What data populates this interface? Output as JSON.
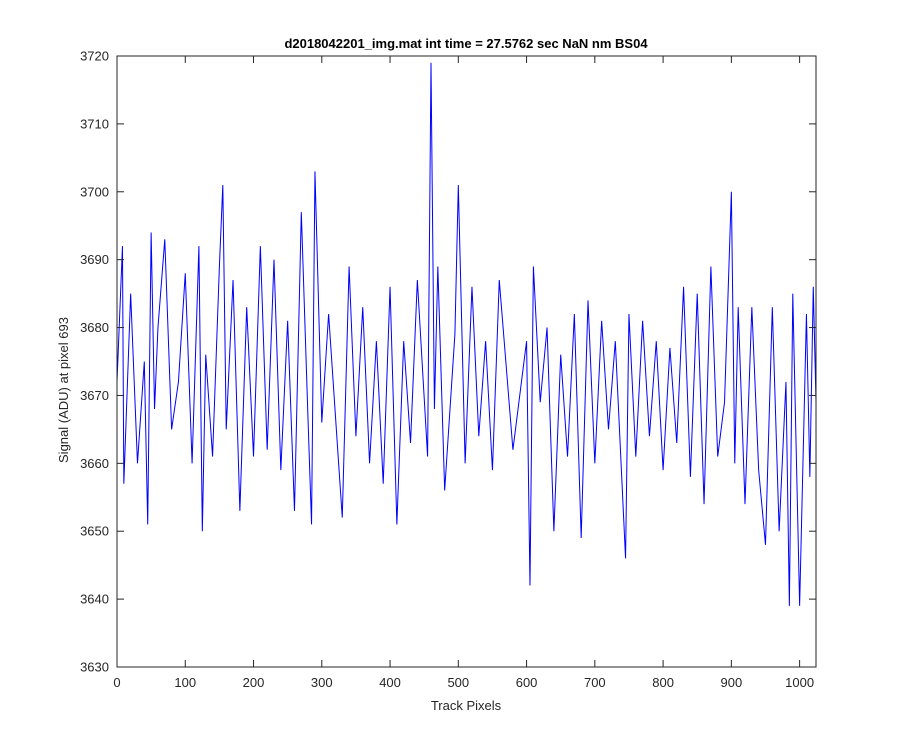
{
  "chart_data": {
    "type": "line",
    "title": "d2018042201_img.mat int time = 27.5762 sec  NaN nm BS04",
    "xlabel": "Track Pixels",
    "ylabel": "Signal (ADU) at pixel 693",
    "xlim": [
      0,
      1024
    ],
    "ylim": [
      3630,
      3720
    ],
    "xticks": [
      0,
      100,
      200,
      300,
      400,
      500,
      600,
      700,
      800,
      900,
      1000
    ],
    "yticks": [
      3630,
      3640,
      3650,
      3660,
      3670,
      3680,
      3690,
      3700,
      3710,
      3720
    ],
    "grid": false,
    "box": true,
    "line_color": "#0000ff",
    "series_points_are_estimated_noise": true,
    "x": [
      0,
      8,
      10,
      20,
      30,
      40,
      45,
      50,
      55,
      60,
      70,
      80,
      90,
      100,
      110,
      120,
      125,
      130,
      140,
      150,
      155,
      160,
      170,
      180,
      190,
      200,
      210,
      220,
      230,
      240,
      250,
      260,
      270,
      280,
      285,
      290,
      300,
      310,
      330,
      340,
      350,
      360,
      370,
      380,
      390,
      400,
      410,
      420,
      430,
      440,
      455,
      460,
      465,
      470,
      480,
      495,
      500,
      510,
      520,
      530,
      540,
      550,
      560,
      580,
      600,
      605,
      610,
      620,
      630,
      640,
      650,
      660,
      670,
      680,
      690,
      700,
      710,
      720,
      730,
      745,
      750,
      760,
      770,
      780,
      790,
      800,
      810,
      820,
      830,
      840,
      850,
      860,
      870,
      880,
      890,
      900,
      905,
      910,
      920,
      930,
      940,
      950,
      960,
      970,
      980,
      985,
      990,
      1000,
      1010,
      1015,
      1020,
      1024
    ],
    "y": [
      3672,
      3692,
      3657,
      3685,
      3660,
      3675,
      3651,
      3694,
      3668,
      3680,
      3693,
      3665,
      3672,
      3688,
      3660,
      3692,
      3650,
      3676,
      3661,
      3689,
      3701,
      3665,
      3687,
      3653,
      3683,
      3661,
      3692,
      3662,
      3690,
      3659,
      3681,
      3653,
      3697,
      3666,
      3651,
      3703,
      3666,
      3682,
      3652,
      3689,
      3664,
      3683,
      3660,
      3678,
      3657,
      3686,
      3651,
      3678,
      3663,
      3687,
      3661,
      3719,
      3668,
      3689,
      3656,
      3679,
      3701,
      3660,
      3686,
      3664,
      3678,
      3659,
      3687,
      3662,
      3678,
      3642,
      3689,
      3669,
      3680,
      3650,
      3676,
      3661,
      3682,
      3649,
      3684,
      3660,
      3681,
      3665,
      3678,
      3646,
      3682,
      3661,
      3681,
      3664,
      3678,
      3659,
      3677,
      3663,
      3686,
      3658,
      3685,
      3654,
      3689,
      3661,
      3669,
      3700,
      3660,
      3683,
      3654,
      3683,
      3659,
      3648,
      3683,
      3650,
      3672,
      3639,
      3685,
      3639,
      3682,
      3658,
      3686,
      3669
    ]
  }
}
